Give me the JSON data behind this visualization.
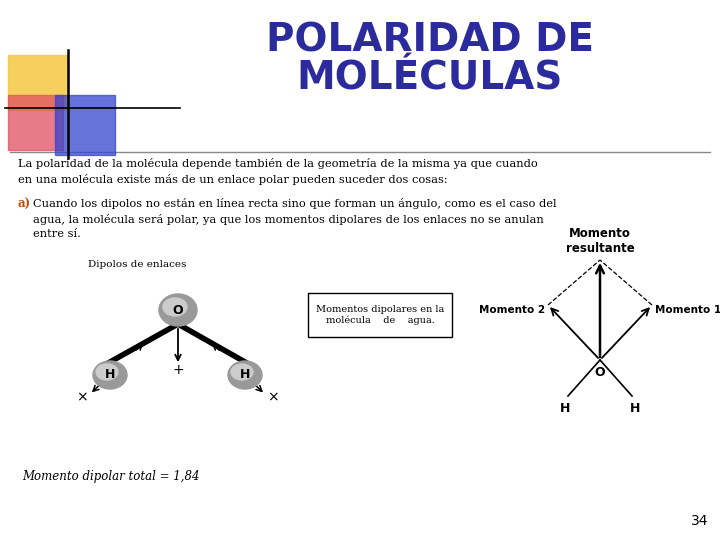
{
  "title_line1": "POLARIDAD DE",
  "title_line2": "MOLÉCULAS",
  "title_color": "#2b2b9e",
  "title_fontsize": 28,
  "body_text1": "La polaridad de la molécula depende también de la geometría de la misma ya que cuando\nen una molécula existe más de un enlace polar pueden suceder dos cosas:",
  "body_text2_label": "a)",
  "body_text2": "Cuando los dipolos no están en línea recta sino que forman un ángulo, como es el caso del\nagua, la molécula será polar, ya que los momentos dipolares de los enlaces no se anulan\nentre sí.",
  "label_dipolos": "Dipolos de enlaces",
  "box_text": "Momentos dipolares en la\nmolécula    de    agua.",
  "label_momento": "Momento\nresultante",
  "label_momento2": "Momento 2",
  "label_momento1": "Momento 1",
  "footer_text": "Momento dipolar total = 1,84",
  "page_number": "34",
  "bg_color": "#ffffff",
  "text_color": "#000000",
  "accent_color_a": "#cc4400",
  "deco_yellow": "#f5c842",
  "deco_red": "#e05060",
  "deco_blue": "#3344cc"
}
